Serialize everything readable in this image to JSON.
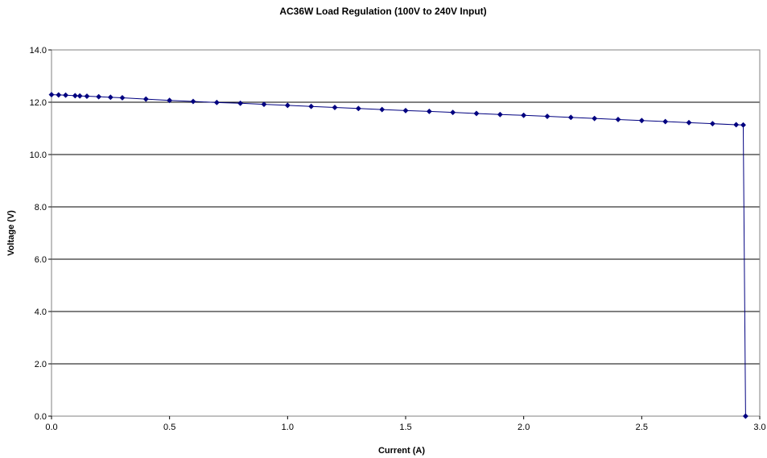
{
  "chart_data": {
    "type": "scatter",
    "title": "AC36W Load Regulation (100V to 240V Input)",
    "xlabel": "Current (A)",
    "ylabel": "Voltage (V)",
    "xlim": [
      0,
      3
    ],
    "ylim": [
      0,
      14
    ],
    "xticks": [
      "0.0",
      "0.5",
      "1.0",
      "1.5",
      "2.0",
      "2.5",
      "3.0"
    ],
    "yticks": [
      "0.0",
      "2.0",
      "4.0",
      "6.0",
      "8.0",
      "10.0",
      "12.0",
      "14.0"
    ],
    "grid": "horizontal",
    "legend": "none",
    "series": [
      {
        "color": "#000080",
        "marker": "diamond",
        "x": [
          0.0,
          0.03,
          0.06,
          0.1,
          0.12,
          0.15,
          0.2,
          0.25,
          0.3,
          0.4,
          0.5,
          0.6,
          0.7,
          0.8,
          0.9,
          1.0,
          1.1,
          1.2,
          1.3,
          1.4,
          1.5,
          1.6,
          1.7,
          1.8,
          1.9,
          2.0,
          2.1,
          2.2,
          2.3,
          2.4,
          2.5,
          2.6,
          2.7,
          2.8,
          2.9,
          2.93,
          2.94
        ],
        "y": [
          12.29,
          12.28,
          12.27,
          12.25,
          12.24,
          12.23,
          12.21,
          12.19,
          12.17,
          12.12,
          12.07,
          12.03,
          11.99,
          11.96,
          11.92,
          11.88,
          11.84,
          11.8,
          11.76,
          11.72,
          11.68,
          11.65,
          11.61,
          11.57,
          11.53,
          11.5,
          11.46,
          11.42,
          11.38,
          11.34,
          11.3,
          11.26,
          11.22,
          11.18,
          11.14,
          11.13,
          0.0
        ]
      }
    ]
  }
}
